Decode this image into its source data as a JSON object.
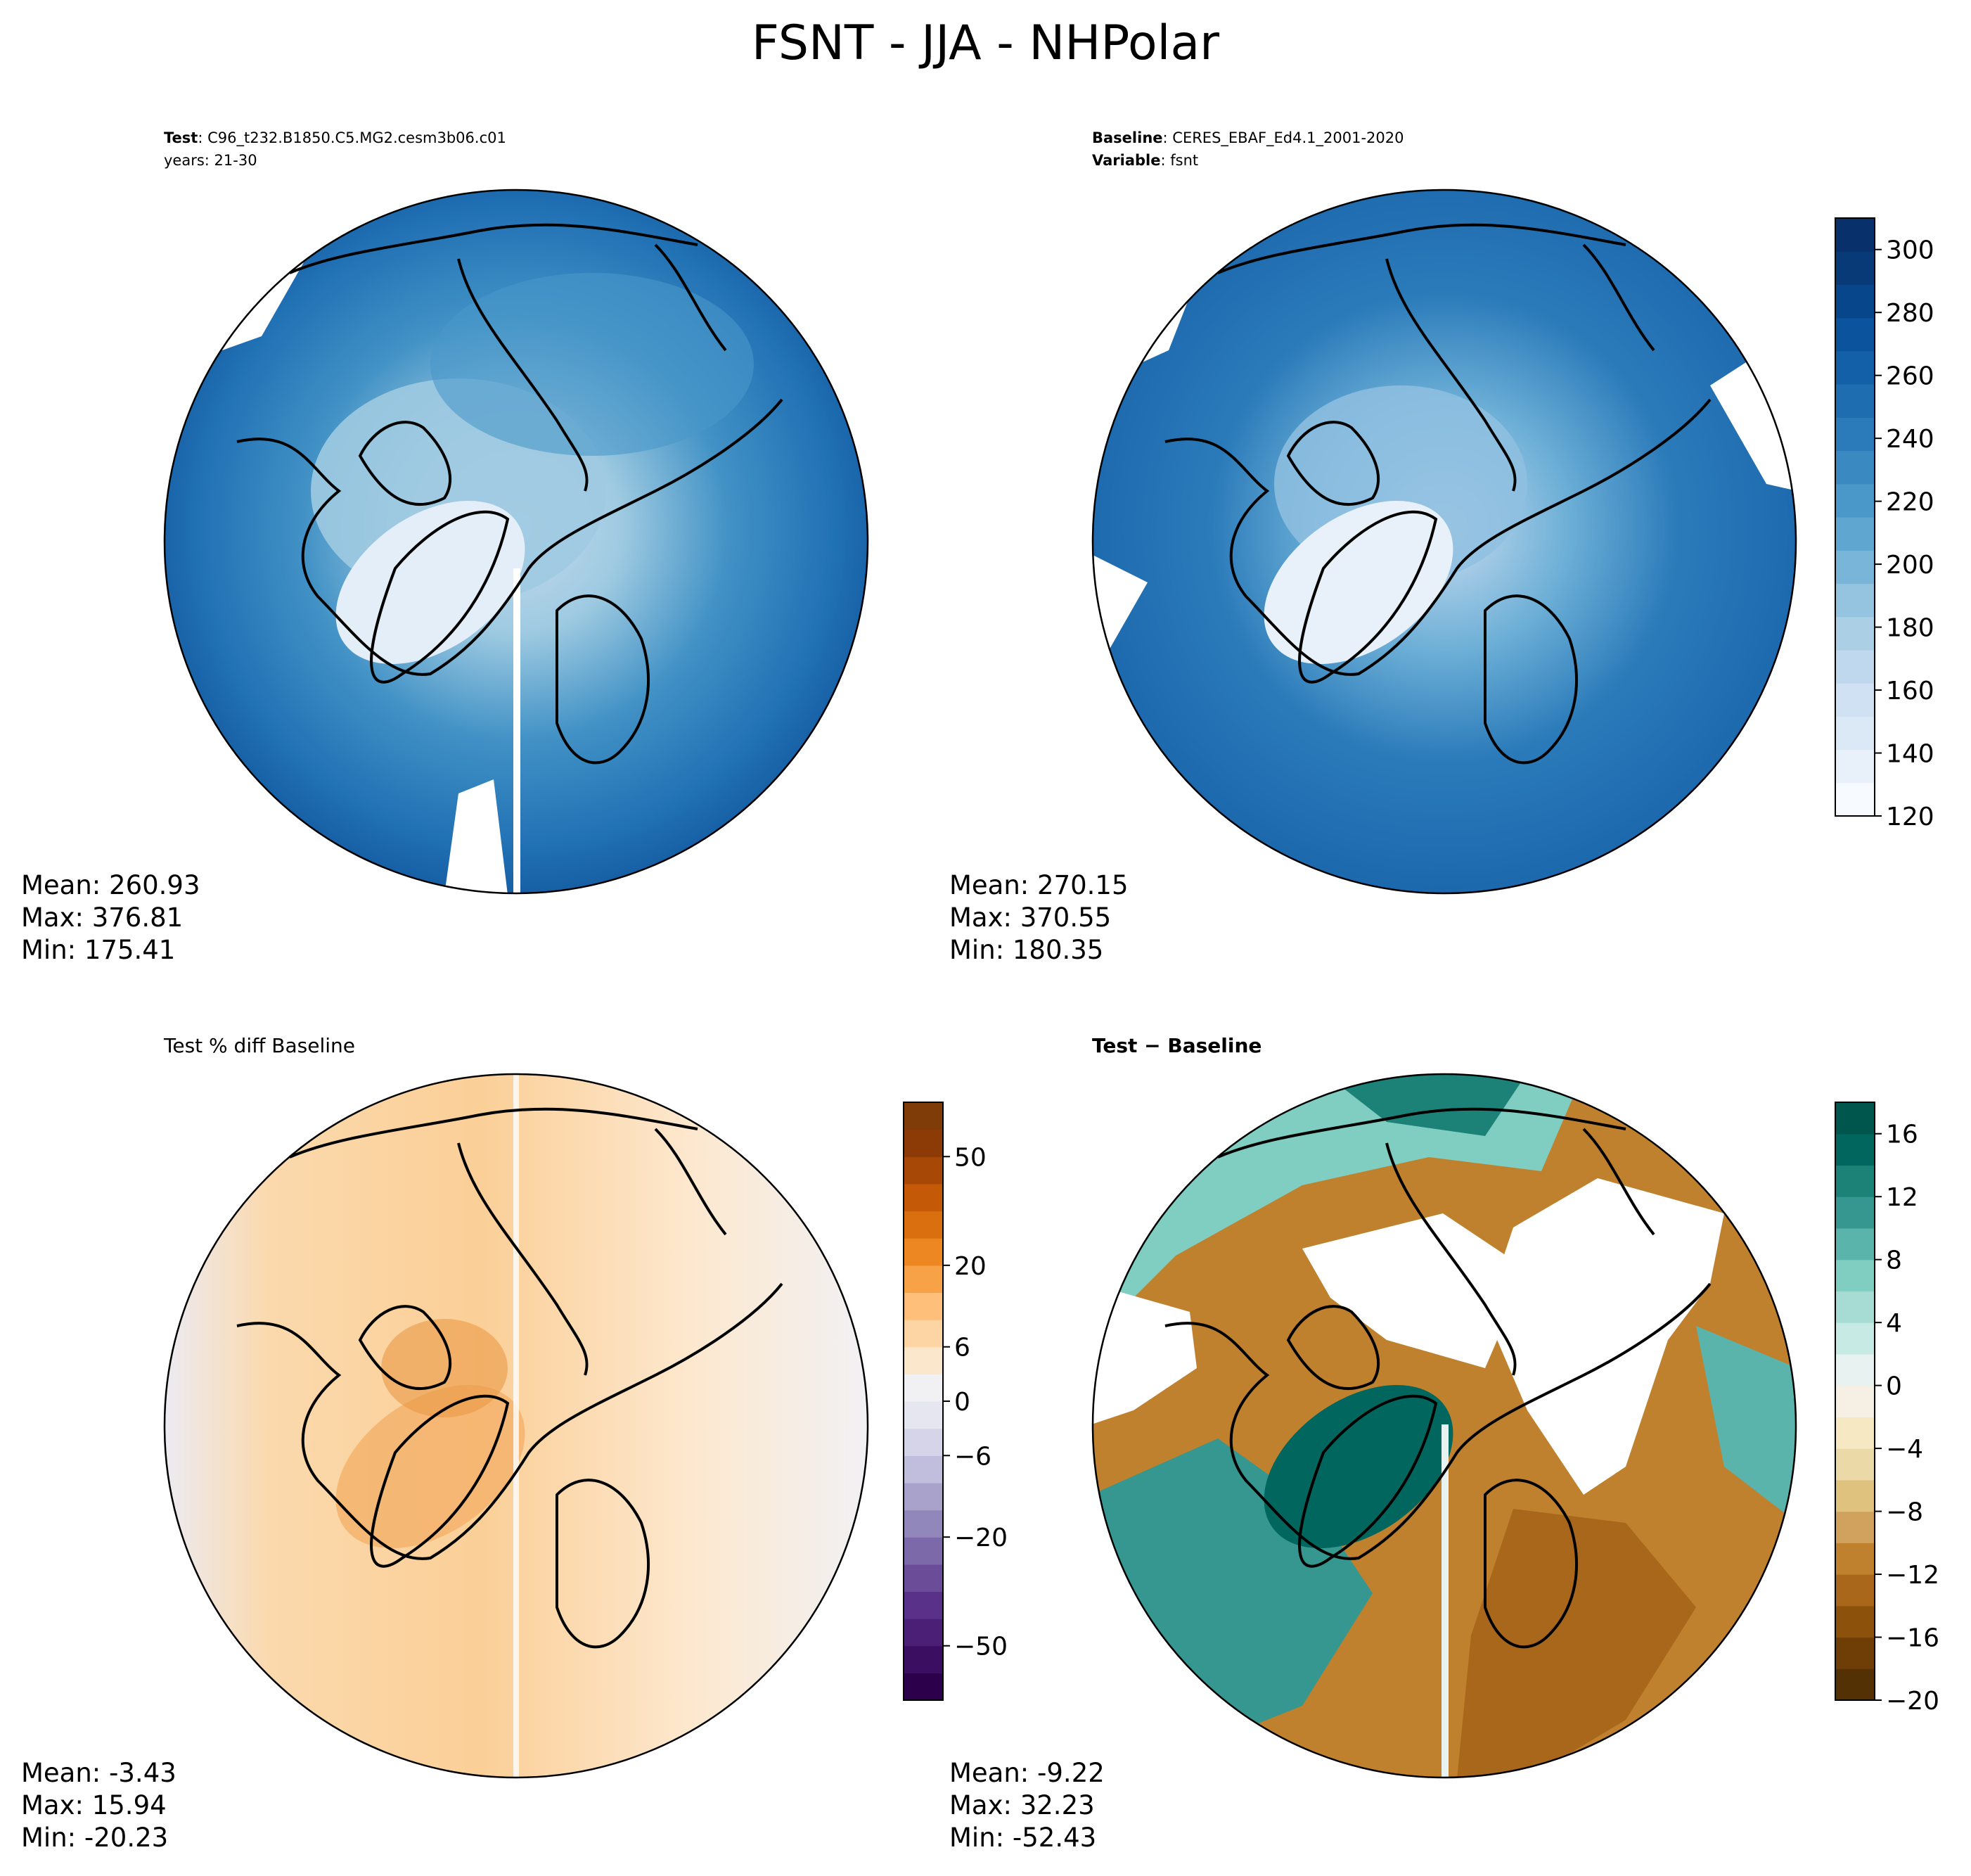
{
  "figure": {
    "title": "FSNT - JJA - NHPolar"
  },
  "panels": {
    "test": {
      "label": "Test",
      "case": "C96_t232.B1850.C5.MG2.cesm3b06.c01",
      "years": "years: 21-30",
      "mean": "Mean: 260.93",
      "max": "Max: 376.81",
      "min": "Min: 175.41"
    },
    "baseline": {
      "label": "Baseline",
      "case": "CERES_EBAF_Ed4.1_2001-2020",
      "variable_label": "Variable",
      "variable": "fsnt",
      "mean": "Mean: 270.15",
      "max": "Max: 370.55",
      "min": "Min: 180.35"
    },
    "pctdiff": {
      "title": "Test % diff Baseline",
      "mean": "Mean: -3.43",
      "max": "Max: 15.94",
      "min": "Min: -20.23"
    },
    "diff": {
      "title": "Test − Baseline",
      "mean": "Mean: -9.22",
      "max": "Max: 32.23",
      "min": "Min: -52.43"
    }
  },
  "colorbars": {
    "main": {
      "ticks": [
        "120",
        "140",
        "160",
        "180",
        "200",
        "220",
        "240",
        "260",
        "280",
        "300"
      ],
      "range": [
        120,
        310
      ],
      "colors": [
        "#f7fbff",
        "#e8f1fa",
        "#dbe9f6",
        "#cfe1f2",
        "#bfd8ed",
        "#abd0e6",
        "#94c4df",
        "#79b5d9",
        "#5fa6d1",
        "#4a98c9",
        "#3a89c1",
        "#2b7bba",
        "#1f6db1",
        "#1460a8",
        "#0b539c",
        "#08468b",
        "#083a78",
        "#08306b"
      ]
    },
    "pct": {
      "ticks": [
        "−50",
        "−20",
        "−6",
        "0",
        "6",
        "20",
        "50"
      ],
      "colors": [
        "#2d004b",
        "#3c0e61",
        "#4b1f75",
        "#5a3189",
        "#6a4c99",
        "#7c69a9",
        "#9287bb",
        "#a9a3cc",
        "#c1bedd",
        "#d6d4e8",
        "#e6e6f0",
        "#f1f1f4",
        "#fbe7cc",
        "#fdd5a4",
        "#fdbf7a",
        "#f8a248",
        "#ed8721",
        "#da6f0f",
        "#c45a08",
        "#a84806",
        "#8c3b06",
        "#7f3b08"
      ]
    },
    "diff": {
      "ticks": [
        "−20",
        "−16",
        "−12",
        "−8",
        "−4",
        "0",
        "4",
        "8",
        "12",
        "16"
      ],
      "range": [
        -20,
        18
      ],
      "colors": [
        "#543005",
        "#6e3e06",
        "#8c510a",
        "#a8671a",
        "#bf812d",
        "#d1a15e",
        "#dfc27d",
        "#ecd9a8",
        "#f6e8c3",
        "#f5f0e3",
        "#e8f3f1",
        "#c7eae5",
        "#a6dcd3",
        "#80cdc1",
        "#5ab4ac",
        "#35978f",
        "#1c8177",
        "#01665e",
        "#00554c"
      ]
    }
  },
  "map_colors": {
    "coast": "#000000",
    "missing": "#ffffff"
  }
}
